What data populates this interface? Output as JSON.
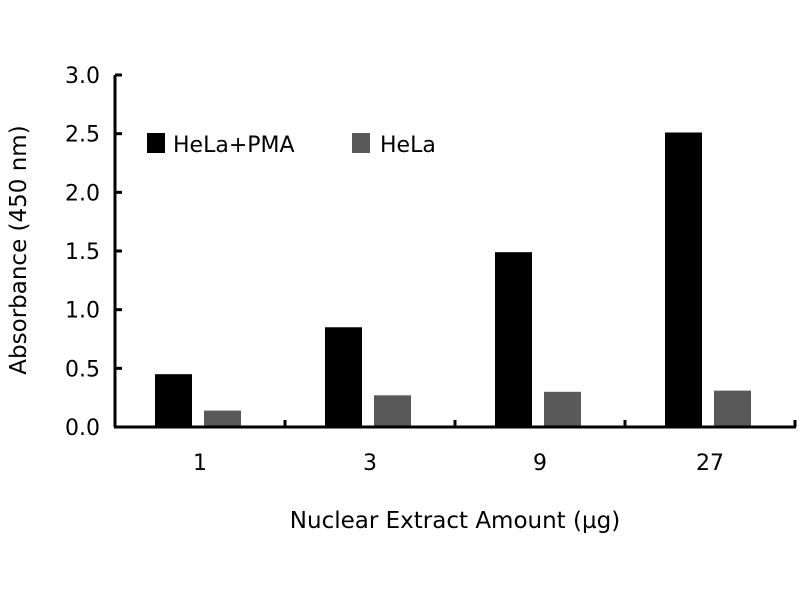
{
  "chart_data": {
    "type": "bar",
    "title": "",
    "xlabel": "Nuclear Extract Amount (µg)",
    "ylabel": "Absorbance (450 nm)",
    "categories": [
      "1",
      "3",
      "9",
      "27"
    ],
    "series": [
      {
        "name": "HeLa+PMA",
        "color": "#000000",
        "values": [
          0.45,
          0.85,
          1.49,
          2.51
        ]
      },
      {
        "name": "HeLa",
        "color": "#595959",
        "values": [
          0.14,
          0.27,
          0.3,
          0.31
        ]
      }
    ],
    "ylim": [
      0,
      3.0
    ],
    "yticks": [
      "0.0",
      "0.5",
      "1.0",
      "1.5",
      "2.0",
      "2.5",
      "3.0"
    ],
    "grid": false,
    "legend": "top-left"
  }
}
